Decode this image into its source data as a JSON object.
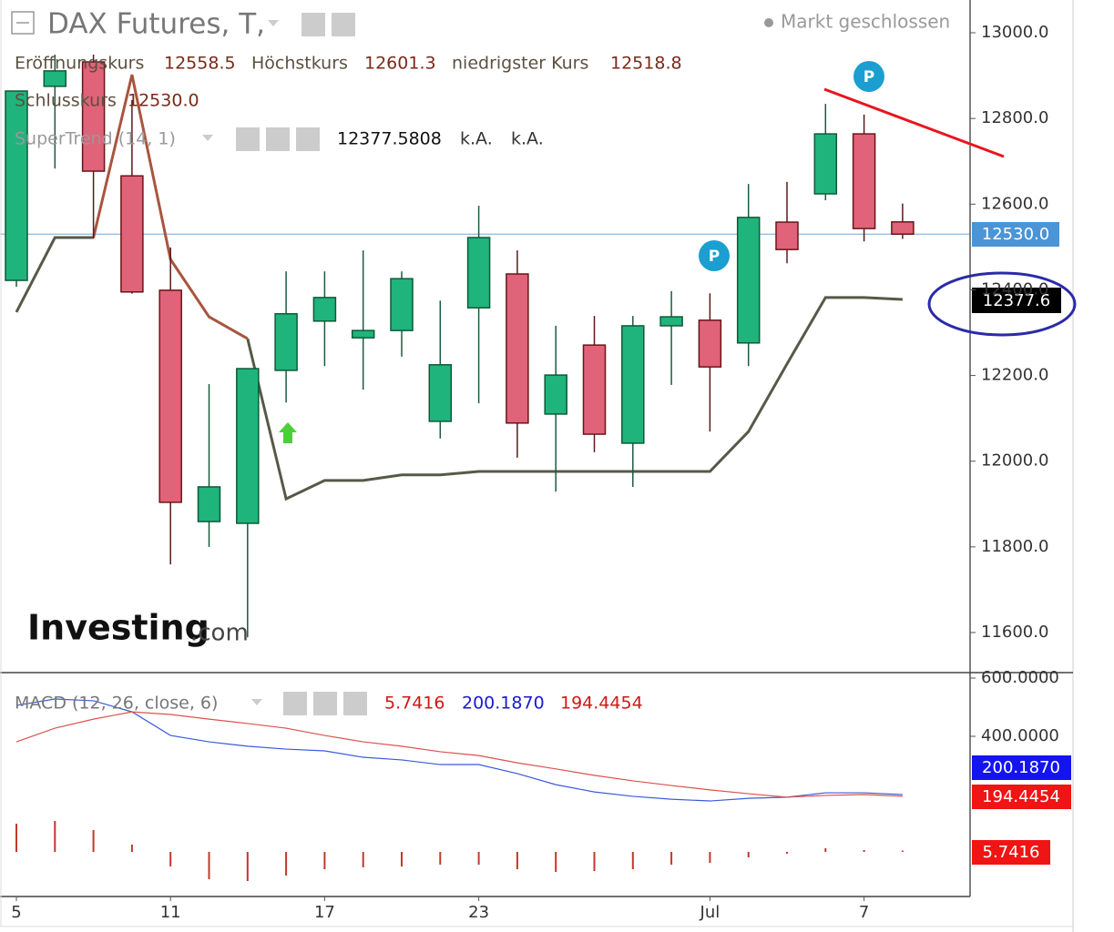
{
  "header": {
    "title": "DAX Futures, T,",
    "status": "Markt geschlossen",
    "logo": [
      "Investing",
      ".com"
    ]
  },
  "chart_data": [
    {
      "type": "candlestick",
      "categories": [
        "5",
        null,
        null,
        null,
        "11",
        null,
        null,
        null,
        "17",
        null,
        null,
        null,
        "23",
        null,
        null,
        null,
        null,
        null,
        "Jul",
        null,
        null,
        null,
        "7",
        null
      ],
      "open": [
        12422,
        12875,
        12932,
        12666,
        12399,
        11859,
        11855,
        12212,
        12327,
        12288,
        12305,
        12093,
        12358,
        12437,
        12110,
        12271,
        12042,
        12316,
        12329,
        12276,
        12558,
        12624,
        12764,
        12558.5
      ],
      "high": [
        12864,
        12949,
        12949,
        12843,
        12499,
        12180,
        12216,
        12443,
        12443,
        12492,
        12443,
        12375,
        12596,
        12492,
        12316,
        12339,
        12339,
        12397,
        12392,
        12647,
        12652,
        12834,
        12809,
        12601.3
      ],
      "low": [
        12407,
        12683,
        12520,
        12391,
        11759,
        11800,
        11589,
        12137,
        12222,
        12167,
        12244,
        12053,
        12135,
        12008,
        11929,
        12021,
        11940,
        12178,
        12069,
        12222,
        12462,
        12609,
        12513,
        12518.8
      ],
      "close": [
        12864,
        12911,
        12677,
        12395,
        11904,
        11940,
        12216,
        12344,
        12382,
        12305,
        12426,
        12225,
        12522,
        12089,
        12201,
        12063,
        12316,
        12337,
        12220,
        12569,
        12494,
        12764,
        12543,
        12530
      ],
      "up_color": "#1fb47c",
      "down_color": "#e0637a",
      "ylim": [
        11508.6,
        13076.5
      ],
      "yticks": [
        {
          "value": 11600,
          "label": "11600.0"
        },
        {
          "value": 11800,
          "label": "11800.0"
        },
        {
          "value": 12000,
          "label": "12000.0"
        },
        {
          "value": 12200,
          "label": "12200.0"
        },
        {
          "value": 12400,
          "label": "12400.0"
        },
        {
          "value": 12600,
          "label": "12600.0"
        },
        {
          "value": 12800,
          "label": "12800.0"
        },
        {
          "value": 13000,
          "label": "13000.0"
        }
      ],
      "ohlc_legend": {
        "labels": [
          "Eröffnungskurs",
          "Höchstkurs",
          "niedrigster Kurs",
          "Schlusskurs"
        ],
        "values": [
          12558.5,
          12601.3,
          12518.8,
          12530
        ],
        "value_labels": [
          "12558.5",
          "12601.3",
          "12518.8",
          "12530.0"
        ]
      },
      "supertrend": {
        "label": "SuperTrend (14, 1)",
        "value": 12377.5808,
        "flag_label": "12377.6",
        "extra": [
          "k.A.",
          "k.A."
        ],
        "series": [
          {
            "color": "#555a48",
            "values": [
              12348,
              12522,
              12522,
              null,
              null,
              null,
              12286,
              11912,
              11955,
              11955,
              11968,
              11968,
              11976,
              11976,
              11976,
              11976,
              11976,
              11976,
              11976,
              12069,
              12227,
              12382,
              12382,
              12377.5808
            ]
          },
          {
            "color": "#a8553f",
            "values": [
              null,
              null,
              12522,
              12902,
              12471,
              12337,
              12286,
              null,
              null,
              null,
              null,
              null,
              null,
              null,
              null,
              null,
              null,
              null,
              null,
              null,
              null,
              null,
              null,
              null
            ]
          }
        ]
      },
      "marker_label": "P"
    },
    {
      "type": "macd",
      "title": "MACD (12, 26, close, 6)",
      "ylim": [
        -150,
        615.6
      ],
      "yticks": [
        {
          "value": 400,
          "label": "400.0000"
        },
        {
          "value": 600,
          "label": "600.0000"
        }
      ],
      "histogram": {
        "color": "#c0392b",
        "values": [
          124,
          136,
          96,
          32,
          -64,
          -120,
          -128,
          -104,
          -76,
          -68,
          -64,
          -56,
          -56,
          -76,
          -88,
          -84,
          -76,
          -56,
          -48,
          -24,
          -8,
          16,
          8,
          5.7416
        ]
      },
      "series": [
        {
          "color": "#3a5bd9",
          "values": [
            506,
            528,
            522,
            484,
            403,
            381,
            366,
            356,
            350,
            328,
            319,
            303,
            303,
            272,
            234,
            209,
            194,
            184,
            178,
            187,
            191,
            206,
            206,
            200.187
          ],
          "last_label": "200.1870"
        },
        {
          "color": "#d9534f",
          "values": [
            381,
            428,
            459,
            484,
            475,
            459,
            444,
            428,
            403,
            381,
            366,
            347,
            334,
            309,
            288,
            266,
            247,
            231,
            216,
            203,
            191,
            197,
            200,
            194.4454
          ],
          "last_label": "194.4454"
        }
      ]
    }
  ]
}
